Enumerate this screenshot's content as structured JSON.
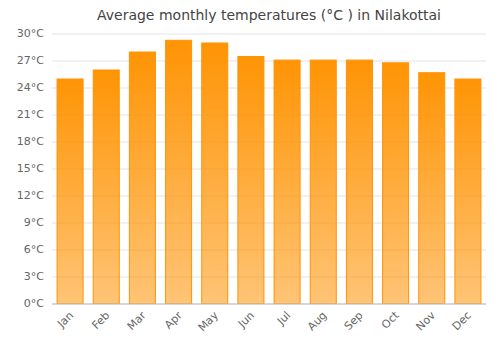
{
  "chart_data": {
    "type": "bar",
    "title": "Average monthly temperatures (°C ) in Nilakottai",
    "categories": [
      "Jan",
      "Feb",
      "Mar",
      "Apr",
      "May",
      "Jun",
      "Jul",
      "Aug",
      "Sep",
      "Oct",
      "Nov",
      "Dec"
    ],
    "values": [
      25.0,
      26.0,
      28.0,
      29.3,
      29.0,
      27.5,
      27.1,
      27.1,
      27.1,
      26.8,
      25.7,
      25.0
    ],
    "color": "#FF9405",
    "ylim": [
      0,
      30
    ],
    "yticks": [
      {
        "value": 0,
        "label": "0°C"
      },
      {
        "value": 3,
        "label": "3°C"
      },
      {
        "value": 6,
        "label": "6°C"
      },
      {
        "value": 9,
        "label": "9°C"
      },
      {
        "value": 12,
        "label": "12°C"
      },
      {
        "value": 15,
        "label": "15°C"
      },
      {
        "value": 18,
        "label": "18°C"
      },
      {
        "value": 21,
        "label": "21°C"
      },
      {
        "value": 24,
        "label": "24°C"
      },
      {
        "value": 27,
        "label": "27°C"
      },
      {
        "value": 30,
        "label": "30°C"
      }
    ],
    "grid": true
  }
}
